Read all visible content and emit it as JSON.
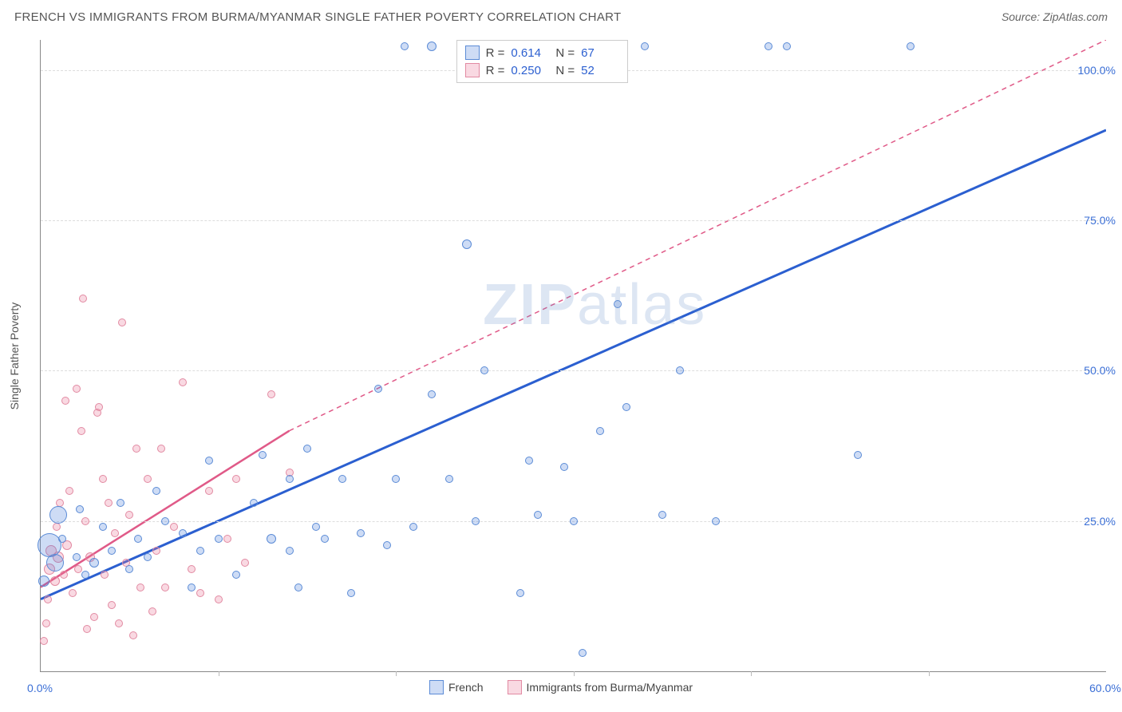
{
  "header": {
    "title": "FRENCH VS IMMIGRANTS FROM BURMA/MYANMAR SINGLE FATHER POVERTY CORRELATION CHART",
    "source_label": "Source:",
    "source_value": "ZipAtlas.com"
  },
  "axes": {
    "ylabel": "Single Father Poverty",
    "xlim": [
      0,
      60
    ],
    "ylim": [
      0,
      105
    ],
    "xticks": [
      {
        "v": 0,
        "label": "0.0%"
      },
      {
        "v": 60,
        "label": "60.0%"
      }
    ],
    "xticks_minor": [
      10,
      20,
      30,
      40,
      50
    ],
    "yticks": [
      {
        "v": 25,
        "label": "25.0%"
      },
      {
        "v": 50,
        "label": "50.0%"
      },
      {
        "v": 75,
        "label": "75.0%"
      },
      {
        "v": 100,
        "label": "100.0%"
      }
    ]
  },
  "series": {
    "french": {
      "label": "French",
      "color_fill": "rgba(80,130,220,0.28)",
      "color_stroke": "#5b8bd6",
      "reg_color": "#2b5fd0",
      "reg_from": [
        0,
        12
      ],
      "reg_to": [
        60,
        90
      ],
      "r_value": "0.614",
      "n_value": "67",
      "points": [
        [
          0.5,
          21,
          30
        ],
        [
          0.8,
          18,
          22
        ],
        [
          1.0,
          26,
          22
        ],
        [
          0.2,
          15,
          14
        ],
        [
          1.2,
          22,
          10
        ],
        [
          2.0,
          19,
          10
        ],
        [
          2.2,
          27,
          10
        ],
        [
          2.5,
          16,
          10
        ],
        [
          3.0,
          18,
          12
        ],
        [
          3.5,
          24,
          10
        ],
        [
          4.0,
          20,
          10
        ],
        [
          4.5,
          28,
          10
        ],
        [
          5.0,
          17,
          10
        ],
        [
          5.5,
          22,
          10
        ],
        [
          6.0,
          19,
          10
        ],
        [
          7.0,
          25,
          10
        ],
        [
          8.0,
          23,
          10
        ],
        [
          8.5,
          14,
          10
        ],
        [
          9.0,
          20,
          10
        ],
        [
          9.5,
          35,
          10
        ],
        [
          10.0,
          22,
          10
        ],
        [
          11.0,
          16,
          10
        ],
        [
          12.0,
          28,
          10
        ],
        [
          12.5,
          36,
          10
        ],
        [
          13.0,
          22,
          12
        ],
        [
          14.0,
          20,
          10
        ],
        [
          14.5,
          14,
          10
        ],
        [
          15.0,
          37,
          10
        ],
        [
          15.5,
          24,
          10
        ],
        [
          16.0,
          22,
          10
        ],
        [
          17.0,
          32,
          10
        ],
        [
          17.5,
          13,
          10
        ],
        [
          18.0,
          23,
          10
        ],
        [
          19.0,
          47,
          10
        ],
        [
          19.5,
          21,
          10
        ],
        [
          20.0,
          32,
          10
        ],
        [
          20.5,
          104,
          10
        ],
        [
          21.0,
          24,
          10
        ],
        [
          22.0,
          46,
          10
        ],
        [
          23.0,
          32,
          10
        ],
        [
          24.0,
          71,
          12
        ],
        [
          24.5,
          25,
          10
        ],
        [
          25.0,
          50,
          10
        ],
        [
          25.5,
          104,
          10
        ],
        [
          27.0,
          13,
          10
        ],
        [
          27.5,
          35,
          10
        ],
        [
          28.0,
          26,
          10
        ],
        [
          29.0,
          104,
          10
        ],
        [
          29.5,
          34,
          10
        ],
        [
          30.0,
          25,
          10
        ],
        [
          30.5,
          3,
          10
        ],
        [
          31.5,
          40,
          10
        ],
        [
          32.0,
          104,
          10
        ],
        [
          32.5,
          61,
          10
        ],
        [
          33.0,
          44,
          10
        ],
        [
          34.0,
          104,
          10
        ],
        [
          35.0,
          26,
          10
        ],
        [
          36.0,
          50,
          10
        ],
        [
          38.0,
          25,
          10
        ],
        [
          41.0,
          104,
          10
        ],
        [
          42.0,
          104,
          10
        ],
        [
          46.0,
          36,
          10
        ],
        [
          49.0,
          104,
          10
        ],
        [
          28.0,
          104,
          12
        ],
        [
          22.0,
          104,
          12
        ],
        [
          14.0,
          32,
          10
        ],
        [
          6.5,
          30,
          10
        ]
      ]
    },
    "burma": {
      "label": "Immigrants from Burma/Myanmar",
      "color_fill": "rgba(235,120,150,0.28)",
      "color_stroke": "#e28aa2",
      "reg_color": "#e05a88",
      "reg_from": [
        0,
        14
      ],
      "reg_to": [
        14,
        40
      ],
      "reg_dash_to": [
        60,
        105
      ],
      "r_value": "0.250",
      "n_value": "52",
      "points": [
        [
          0.2,
          5,
          10
        ],
        [
          0.3,
          8,
          10
        ],
        [
          0.4,
          12,
          10
        ],
        [
          0.5,
          17,
          14
        ],
        [
          0.6,
          20,
          14
        ],
        [
          0.8,
          15,
          12
        ],
        [
          0.9,
          24,
          10
        ],
        [
          1.0,
          19,
          14
        ],
        [
          1.1,
          28,
          10
        ],
        [
          1.3,
          16,
          10
        ],
        [
          1.4,
          45,
          10
        ],
        [
          1.5,
          21,
          12
        ],
        [
          1.6,
          30,
          10
        ],
        [
          1.8,
          13,
          10
        ],
        [
          2.0,
          47,
          10
        ],
        [
          2.1,
          17,
          10
        ],
        [
          2.3,
          40,
          10
        ],
        [
          2.4,
          62,
          10
        ],
        [
          2.5,
          25,
          10
        ],
        [
          2.6,
          7,
          10
        ],
        [
          2.8,
          19,
          12
        ],
        [
          3.0,
          9,
          10
        ],
        [
          3.2,
          43,
          10
        ],
        [
          3.3,
          44,
          10
        ],
        [
          3.5,
          32,
          10
        ],
        [
          3.6,
          16,
          10
        ],
        [
          3.8,
          28,
          10
        ],
        [
          4.0,
          11,
          10
        ],
        [
          4.2,
          23,
          10
        ],
        [
          4.4,
          8,
          10
        ],
        [
          4.6,
          58,
          10
        ],
        [
          4.8,
          18,
          10
        ],
        [
          5.0,
          26,
          10
        ],
        [
          5.2,
          6,
          10
        ],
        [
          5.4,
          37,
          10
        ],
        [
          5.6,
          14,
          10
        ],
        [
          6.0,
          32,
          10
        ],
        [
          6.3,
          10,
          10
        ],
        [
          6.5,
          20,
          10
        ],
        [
          6.8,
          37,
          10
        ],
        [
          7.0,
          14,
          10
        ],
        [
          7.5,
          24,
          10
        ],
        [
          8.0,
          48,
          10
        ],
        [
          8.5,
          17,
          10
        ],
        [
          9.0,
          13,
          10
        ],
        [
          9.5,
          30,
          10
        ],
        [
          10.0,
          12,
          10
        ],
        [
          10.5,
          22,
          10
        ],
        [
          11.0,
          32,
          10
        ],
        [
          11.5,
          18,
          10
        ],
        [
          13.0,
          46,
          10
        ],
        [
          14.0,
          33,
          10
        ]
      ]
    }
  },
  "stats_box": {
    "r_prefix": "R =",
    "n_prefix": "N ="
  },
  "watermark": {
    "bold": "ZIP",
    "rest": "atlas"
  },
  "colors": {
    "bg": "#ffffff",
    "axis": "#888888",
    "grid": "#dddddd",
    "value": "#2b5fd0",
    "label": "#555555"
  }
}
